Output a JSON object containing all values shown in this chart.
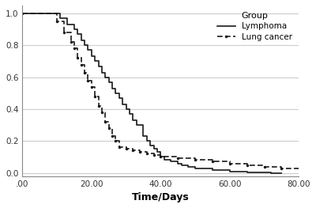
{
  "title": "",
  "xlabel": "Time/Days",
  "ylabel": "",
  "legend_title": "Group",
  "legend_entries": [
    "Lymphoma",
    "Lung cancer"
  ],
  "xlim": [
    0,
    80
  ],
  "ylim": [
    -0.02,
    1.05
  ],
  "xticks": [
    0,
    20,
    40,
    60,
    80
  ],
  "xticklabels": [
    ".00",
    "20.00",
    "40.00",
    "60.00",
    "80.00"
  ],
  "yticks": [
    0.0,
    0.2,
    0.4,
    0.6,
    0.8,
    1.0
  ],
  "background_color": "#ffffff",
  "line_color": "#1a1a1a",
  "grid_color": "#cccccc",
  "lymphoma_x": [
    0,
    11,
    11,
    13,
    13,
    15,
    15,
    16,
    16,
    17,
    17,
    18,
    18,
    19,
    19,
    20,
    20,
    21,
    21,
    22,
    22,
    23,
    23,
    24,
    24,
    25,
    25,
    26,
    26,
    27,
    27,
    28,
    28,
    29,
    29,
    30,
    30,
    31,
    31,
    32,
    32,
    33,
    33,
    35,
    35,
    36,
    36,
    37,
    37,
    38,
    38,
    39,
    39,
    40,
    40,
    41,
    41,
    43,
    43,
    45,
    45,
    46,
    46,
    48,
    48,
    50,
    50,
    55,
    55,
    60,
    60,
    65,
    65,
    70,
    70,
    72,
    72,
    75
  ],
  "lymphoma_y": [
    1.0,
    1.0,
    0.97,
    0.97,
    0.93,
    0.93,
    0.9,
    0.9,
    0.87,
    0.87,
    0.83,
    0.83,
    0.8,
    0.8,
    0.77,
    0.77,
    0.73,
    0.73,
    0.7,
    0.7,
    0.67,
    0.67,
    0.63,
    0.63,
    0.6,
    0.6,
    0.57,
    0.57,
    0.53,
    0.53,
    0.5,
    0.5,
    0.47,
    0.47,
    0.43,
    0.43,
    0.4,
    0.4,
    0.37,
    0.37,
    0.33,
    0.33,
    0.3,
    0.3,
    0.23,
    0.23,
    0.2,
    0.2,
    0.17,
    0.17,
    0.15,
    0.15,
    0.13,
    0.13,
    0.1,
    0.1,
    0.08,
    0.08,
    0.07,
    0.07,
    0.06,
    0.06,
    0.05,
    0.05,
    0.04,
    0.04,
    0.03,
    0.03,
    0.02,
    0.02,
    0.01,
    0.01,
    0.005,
    0.005,
    0.003,
    0.003,
    0.0,
    0.0
  ],
  "lung_x": [
    0,
    10,
    10,
    12,
    12,
    14,
    14,
    15,
    15,
    16,
    16,
    17,
    17,
    18,
    18,
    19,
    19,
    20,
    20,
    21,
    21,
    22,
    22,
    23,
    23,
    24,
    24,
    25,
    25,
    26,
    26,
    27,
    27,
    28,
    28,
    30,
    30,
    32,
    32,
    34,
    34,
    36,
    36,
    38,
    38,
    40,
    40,
    45,
    45,
    50,
    50,
    55,
    55,
    60,
    60,
    65,
    65,
    70,
    70,
    75,
    75,
    80
  ],
  "lung_y": [
    1.0,
    1.0,
    0.95,
    0.95,
    0.88,
    0.88,
    0.82,
    0.82,
    0.78,
    0.78,
    0.72,
    0.72,
    0.68,
    0.68,
    0.63,
    0.63,
    0.58,
    0.58,
    0.54,
    0.54,
    0.48,
    0.48,
    0.42,
    0.42,
    0.38,
    0.38,
    0.32,
    0.32,
    0.28,
    0.28,
    0.23,
    0.23,
    0.2,
    0.2,
    0.16,
    0.16,
    0.15,
    0.15,
    0.14,
    0.14,
    0.13,
    0.13,
    0.12,
    0.12,
    0.11,
    0.11,
    0.1,
    0.1,
    0.09,
    0.09,
    0.08,
    0.08,
    0.07,
    0.07,
    0.06,
    0.06,
    0.05,
    0.05,
    0.04,
    0.04,
    0.03,
    0.03
  ]
}
